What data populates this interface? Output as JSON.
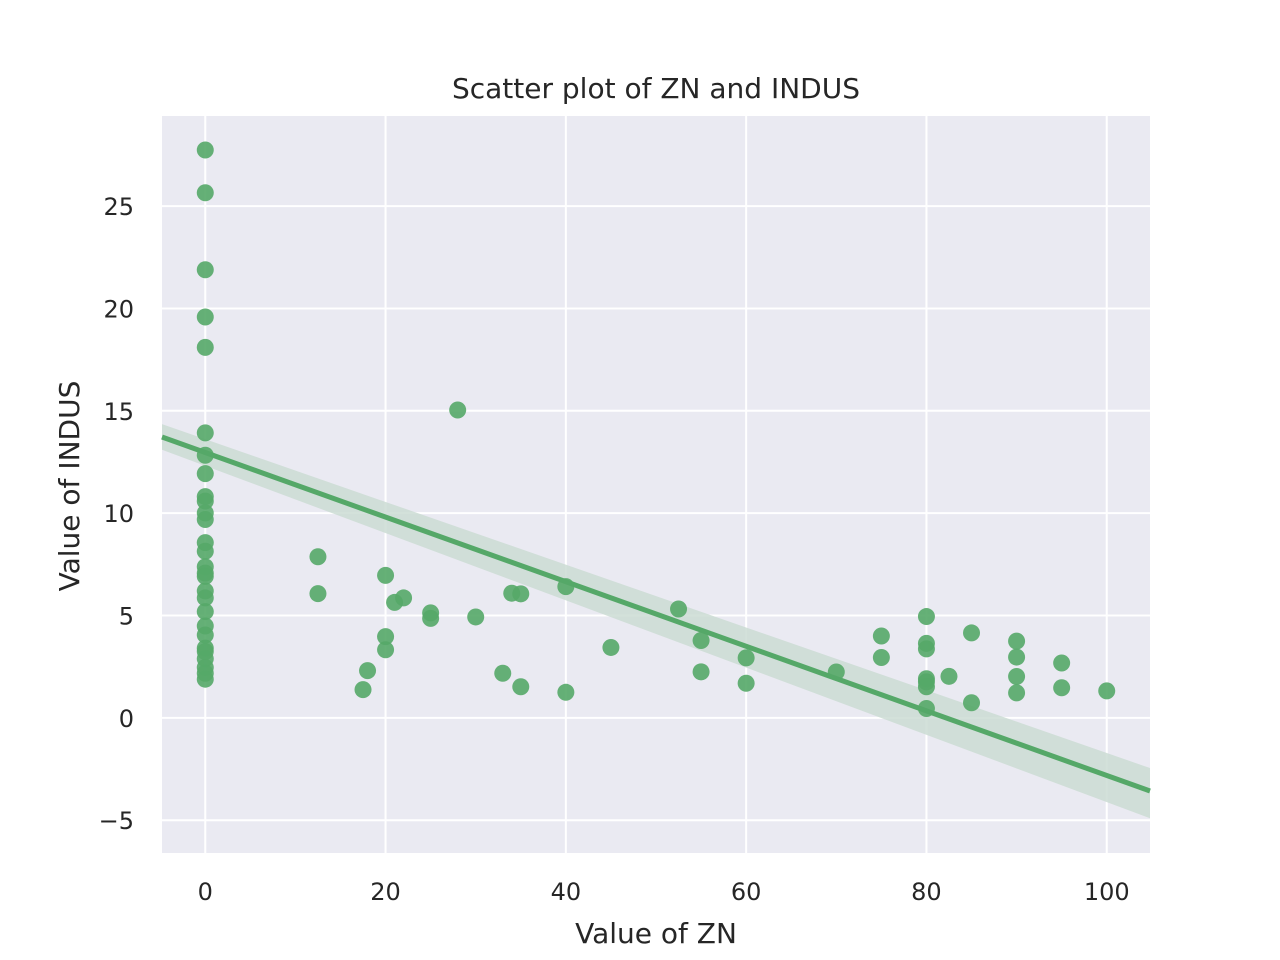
{
  "chart_data": {
    "type": "scatter",
    "title": "Scatter plot of ZN and INDUS",
    "xlabel": "Value of ZN",
    "ylabel": "Value of INDUS",
    "xlim": [
      -4.8,
      104.8
    ],
    "ylim": [
      -6.6,
      29.4
    ],
    "xticks": [
      0,
      20,
      40,
      60,
      80,
      100
    ],
    "xtick_labels": [
      "0",
      "20",
      "40",
      "60",
      "80",
      "100"
    ],
    "yticks": [
      -5,
      0,
      5,
      10,
      15,
      20,
      25
    ],
    "ytick_labels": [
      "−5",
      "0",
      "5",
      "10",
      "15",
      "20",
      "25"
    ],
    "grid": true,
    "background": "#eaeaf2",
    "marker_color": "#55a868",
    "band_color": "#cbdcd4",
    "points": [
      {
        "x": 0,
        "y": 27.74
      },
      {
        "x": 0,
        "y": 25.65
      },
      {
        "x": 0,
        "y": 21.89
      },
      {
        "x": 0,
        "y": 19.58
      },
      {
        "x": 0,
        "y": 18.1
      },
      {
        "x": 0,
        "y": 13.92
      },
      {
        "x": 0,
        "y": 12.83
      },
      {
        "x": 0,
        "y": 11.93
      },
      {
        "x": 0,
        "y": 10.81
      },
      {
        "x": 0,
        "y": 10.59
      },
      {
        "x": 0,
        "y": 10.01
      },
      {
        "x": 0,
        "y": 9.69
      },
      {
        "x": 0,
        "y": 8.56
      },
      {
        "x": 0,
        "y": 8.14
      },
      {
        "x": 0,
        "y": 7.38
      },
      {
        "x": 0,
        "y": 7.07
      },
      {
        "x": 0,
        "y": 6.91
      },
      {
        "x": 0,
        "y": 6.2
      },
      {
        "x": 0,
        "y": 5.86
      },
      {
        "x": 0,
        "y": 5.19
      },
      {
        "x": 0,
        "y": 4.49
      },
      {
        "x": 0,
        "y": 4.05
      },
      {
        "x": 0,
        "y": 3.41
      },
      {
        "x": 0,
        "y": 3.24
      },
      {
        "x": 0,
        "y": 2.89
      },
      {
        "x": 0,
        "y": 2.46
      },
      {
        "x": 0,
        "y": 2.18
      },
      {
        "x": 0,
        "y": 1.89
      },
      {
        "x": 12.5,
        "y": 7.87
      },
      {
        "x": 12.5,
        "y": 6.07
      },
      {
        "x": 17.5,
        "y": 1.38
      },
      {
        "x": 18,
        "y": 2.31
      },
      {
        "x": 20,
        "y": 6.96
      },
      {
        "x": 20,
        "y": 3.97
      },
      {
        "x": 20,
        "y": 3.33
      },
      {
        "x": 21,
        "y": 5.64
      },
      {
        "x": 22,
        "y": 5.86
      },
      {
        "x": 25,
        "y": 5.13
      },
      {
        "x": 25,
        "y": 4.86
      },
      {
        "x": 28,
        "y": 15.04
      },
      {
        "x": 30,
        "y": 4.93
      },
      {
        "x": 33,
        "y": 2.18
      },
      {
        "x": 34,
        "y": 6.09
      },
      {
        "x": 35,
        "y": 6.06
      },
      {
        "x": 35,
        "y": 1.52
      },
      {
        "x": 40,
        "y": 6.41
      },
      {
        "x": 40,
        "y": 1.25
      },
      {
        "x": 45,
        "y": 3.44
      },
      {
        "x": 52.5,
        "y": 5.32
      },
      {
        "x": 55,
        "y": 3.78
      },
      {
        "x": 55,
        "y": 2.25
      },
      {
        "x": 60,
        "y": 2.93
      },
      {
        "x": 60,
        "y": 1.69
      },
      {
        "x": 70,
        "y": 2.24
      },
      {
        "x": 75,
        "y": 4.0
      },
      {
        "x": 75,
        "y": 2.95
      },
      {
        "x": 80,
        "y": 4.95
      },
      {
        "x": 80,
        "y": 3.64
      },
      {
        "x": 80,
        "y": 3.37
      },
      {
        "x": 80,
        "y": 1.91
      },
      {
        "x": 80,
        "y": 1.76
      },
      {
        "x": 80,
        "y": 1.52
      },
      {
        "x": 80,
        "y": 0.46
      },
      {
        "x": 82.5,
        "y": 2.03
      },
      {
        "x": 85,
        "y": 4.15
      },
      {
        "x": 85,
        "y": 0.74
      },
      {
        "x": 90,
        "y": 3.75
      },
      {
        "x": 90,
        "y": 2.97
      },
      {
        "x": 90,
        "y": 2.02
      },
      {
        "x": 90,
        "y": 1.22
      },
      {
        "x": 95,
        "y": 2.68
      },
      {
        "x": 95,
        "y": 1.47
      },
      {
        "x": 100,
        "y": 1.32
      }
    ],
    "regression": {
      "x": [
        -4.8,
        104.8
      ],
      "y": [
        13.72,
        -3.57
      ],
      "ci_lower": [
        13.1,
        -4.9
      ],
      "ci_upper": [
        14.35,
        -2.45
      ]
    }
  }
}
